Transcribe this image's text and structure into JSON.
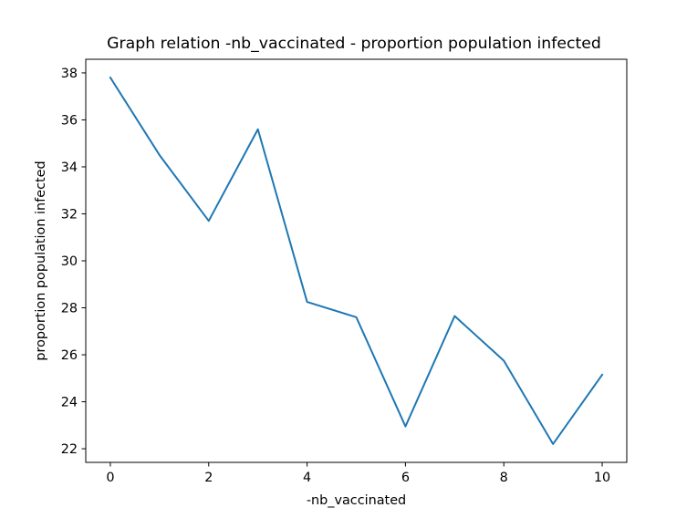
{
  "chart_data": {
    "type": "line",
    "title": "Graph relation -nb_vaccinated - proportion population infected",
    "xlabel": "-nb_vaccinated",
    "ylabel": "proportion population infected",
    "xlim": [
      -0.5,
      10.5
    ],
    "ylim": [
      21.42,
      38.58
    ],
    "xticks": [
      0,
      2,
      4,
      6,
      8,
      10
    ],
    "yticks": [
      22,
      24,
      26,
      28,
      30,
      32,
      34,
      36,
      38
    ],
    "grid": false,
    "series": [
      {
        "color": "#1f77b4",
        "x": [
          0,
          1,
          2,
          3,
          4,
          5,
          6,
          7,
          8,
          9,
          10
        ],
        "y": [
          37.8,
          34.5,
          31.7,
          35.6,
          28.25,
          27.6,
          22.95,
          27.65,
          25.75,
          22.2,
          25.15
        ]
      }
    ]
  }
}
